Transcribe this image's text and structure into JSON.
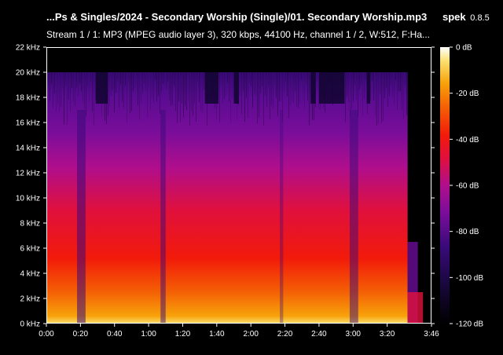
{
  "header": {
    "file_title": "...Ps & Singles/2024 - Secondary Worship (Single)/01. Secondary Worship.mp3",
    "app_name": "spek",
    "app_version": "0.8.5",
    "stream_info": "Stream 1 / 1: MP3 (MPEG audio layer 3), 320 kbps, 44100 Hz, channel 1 / 2, W:512, F:Ha..."
  },
  "chart_data": {
    "type": "heatmap",
    "title": "",
    "xlabel": "",
    "ylabel": "",
    "y_ticks": [
      "22 kHz",
      "20 kHz",
      "18 kHz",
      "16 kHz",
      "14 kHz",
      "12 kHz",
      "10 kHz",
      "8 kHz",
      "6 kHz",
      "4 kHz",
      "2 kHz",
      "0 kHz"
    ],
    "y_range_khz": [
      0,
      22
    ],
    "x_ticks": [
      "0:00",
      "0:20",
      "0:40",
      "1:00",
      "1:20",
      "1:40",
      "2:00",
      "2:20",
      "2:40",
      "3:00",
      "3:20",
      "3:46"
    ],
    "x_range_seconds": [
      0,
      226
    ],
    "cutoff_khz": 20,
    "colorbar_ticks": [
      "0 dB",
      "-20 dB",
      "-40 dB",
      "-60 dB",
      "-80 dB",
      "-100 dB",
      "-120 dB"
    ],
    "colorbar_range_db": [
      -120,
      0
    ],
    "colors": {
      "scale": [
        "#000000",
        "#1a0840",
        "#3a0a7a",
        "#7a0d9a",
        "#b00e8c",
        "#e0103c",
        "#f21a0a",
        "#f45e05",
        "#f7a20a",
        "#fbe070",
        "#ffffff"
      ]
    }
  }
}
